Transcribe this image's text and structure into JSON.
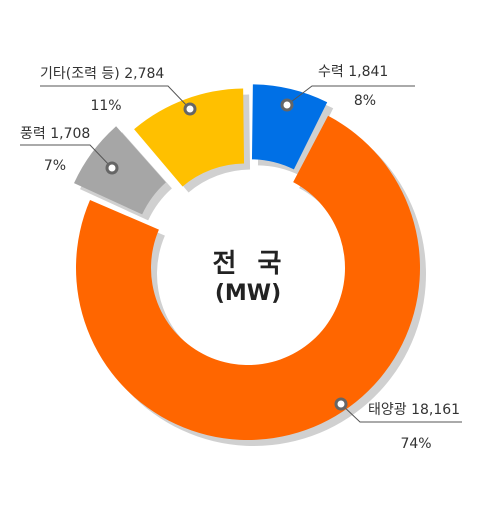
{
  "chart_data": {
    "type": "pie",
    "title": "전 국",
    "unit": "(MW)",
    "slices": [
      {
        "name": "수력",
        "value": 1841,
        "value_label": "1,841",
        "percent_label": "8%",
        "color": "#0070e6"
      },
      {
        "name": "태양광",
        "value": 18161,
        "value_label": "18,161",
        "percent_label": "74%",
        "color": "#ff6600"
      },
      {
        "name": "풍력",
        "value": 1708,
        "value_label": "1,708",
        "percent_label": "7%",
        "color": "#a6a6a6"
      },
      {
        "name": "기타(조력 등)",
        "value": 2784,
        "value_label": "2,784",
        "percent_label": "11%",
        "color": "#ffc000"
      }
    ]
  }
}
